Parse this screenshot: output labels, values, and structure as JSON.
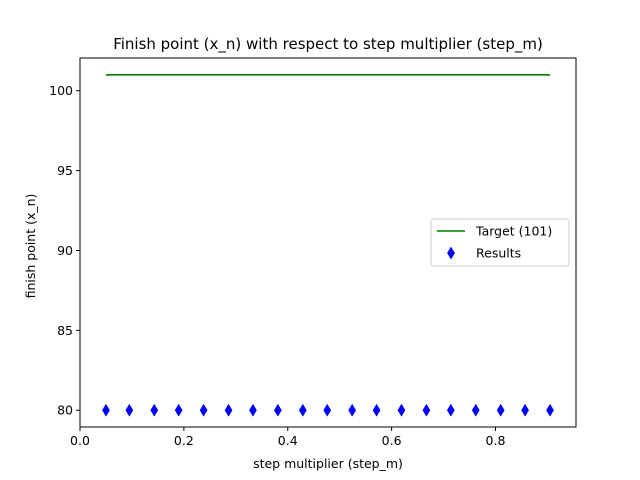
{
  "chart_data": {
    "type": "scatter",
    "title": "Finish point (x_n) with respect to step multiplier (step_m)",
    "xlabel": "step multiplier (step_m)",
    "ylabel": "finish point (x_n)",
    "xlim": [
      0.0,
      0.955
    ],
    "ylim": [
      78.95,
      102.05
    ],
    "grid": false,
    "legend_position": "center-right",
    "x_ticks": [
      {
        "value": 0.0,
        "label": "0.0"
      },
      {
        "value": 0.2,
        "label": "0.2"
      },
      {
        "value": 0.4,
        "label": "0.4"
      },
      {
        "value": 0.6,
        "label": "0.6"
      },
      {
        "value": 0.8,
        "label": "0.8"
      }
    ],
    "y_ticks": [
      {
        "value": 80,
        "label": "80"
      },
      {
        "value": 85,
        "label": "85"
      },
      {
        "value": 90,
        "label": "90"
      },
      {
        "value": 95,
        "label": "95"
      },
      {
        "value": 100,
        "label": "100"
      }
    ],
    "series": [
      {
        "name": "Target (101)",
        "kind": "line",
        "color": "#008000",
        "x": [
          0.05,
          0.905
        ],
        "y": [
          101,
          101
        ]
      },
      {
        "name": "Results",
        "kind": "scatter",
        "marker": "thin-diamond",
        "color": "#0000ff",
        "x": [
          0.05,
          0.095,
          0.143,
          0.19,
          0.238,
          0.286,
          0.333,
          0.381,
          0.429,
          0.476,
          0.524,
          0.571,
          0.619,
          0.667,
          0.714,
          0.762,
          0.81,
          0.857,
          0.905
        ],
        "y": [
          80,
          80,
          80,
          80,
          80,
          80,
          80,
          80,
          80,
          80,
          80,
          80,
          80,
          80,
          80,
          80,
          80,
          80,
          80
        ]
      }
    ]
  }
}
